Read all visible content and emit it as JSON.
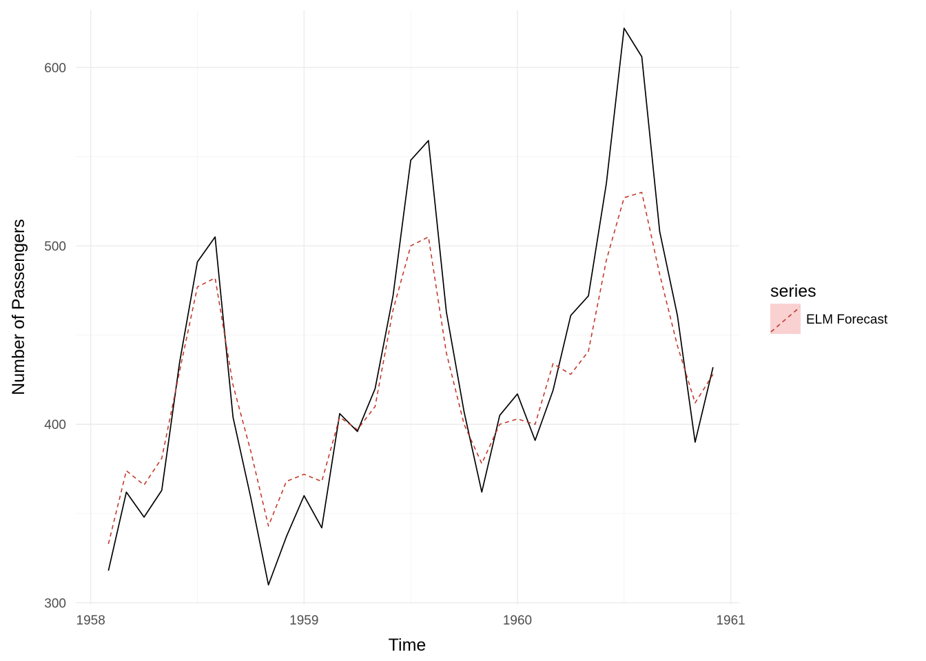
{
  "chart_data": {
    "type": "line",
    "xlabel": "Time",
    "ylabel": "Number of Passengers",
    "xlim": [
      1957.93,
      1961.04
    ],
    "ylim": [
      299,
      632
    ],
    "x_ticks": [
      1958,
      1959,
      1960,
      1961
    ],
    "y_ticks": [
      300,
      400,
      500,
      600
    ],
    "grid": true,
    "legend": {
      "title": "series",
      "position": "right",
      "entries": [
        "ELM Forecast"
      ]
    },
    "x": [
      1958.083,
      1958.167,
      1958.25,
      1958.333,
      1958.417,
      1958.5,
      1958.583,
      1958.667,
      1958.75,
      1958.833,
      1958.917,
      1959.0,
      1959.083,
      1959.167,
      1959.25,
      1959.333,
      1959.417,
      1959.5,
      1959.583,
      1959.667,
      1959.75,
      1959.833,
      1959.917,
      1960.0,
      1960.083,
      1960.167,
      1960.25,
      1960.333,
      1960.417,
      1960.5,
      1960.583,
      1960.667,
      1960.75,
      1960.833,
      1960.917
    ],
    "series": [
      {
        "values": [
          318,
          362,
          348,
          363,
          435,
          491,
          505,
          404,
          359,
          310,
          337,
          360,
          342,
          406,
          396,
          420,
          472,
          548,
          559,
          463,
          407,
          362,
          405,
          417,
          391,
          419,
          461,
          472,
          535,
          622,
          606,
          508,
          461,
          390,
          432
        ],
        "color": "#000000",
        "style": "solid"
      },
      {
        "name": "ELM Forecast",
        "values": [
          333,
          374,
          366,
          381,
          430,
          477,
          482,
          422,
          385,
          343,
          368,
          372,
          368,
          404,
          397,
          410,
          464,
          500,
          505,
          440,
          400,
          378,
          400,
          403,
          400,
          434,
          428,
          441,
          492,
          527,
          530,
          484,
          444,
          412,
          428
        ],
        "color": "#c0392b",
        "style": "dashed"
      }
    ]
  }
}
